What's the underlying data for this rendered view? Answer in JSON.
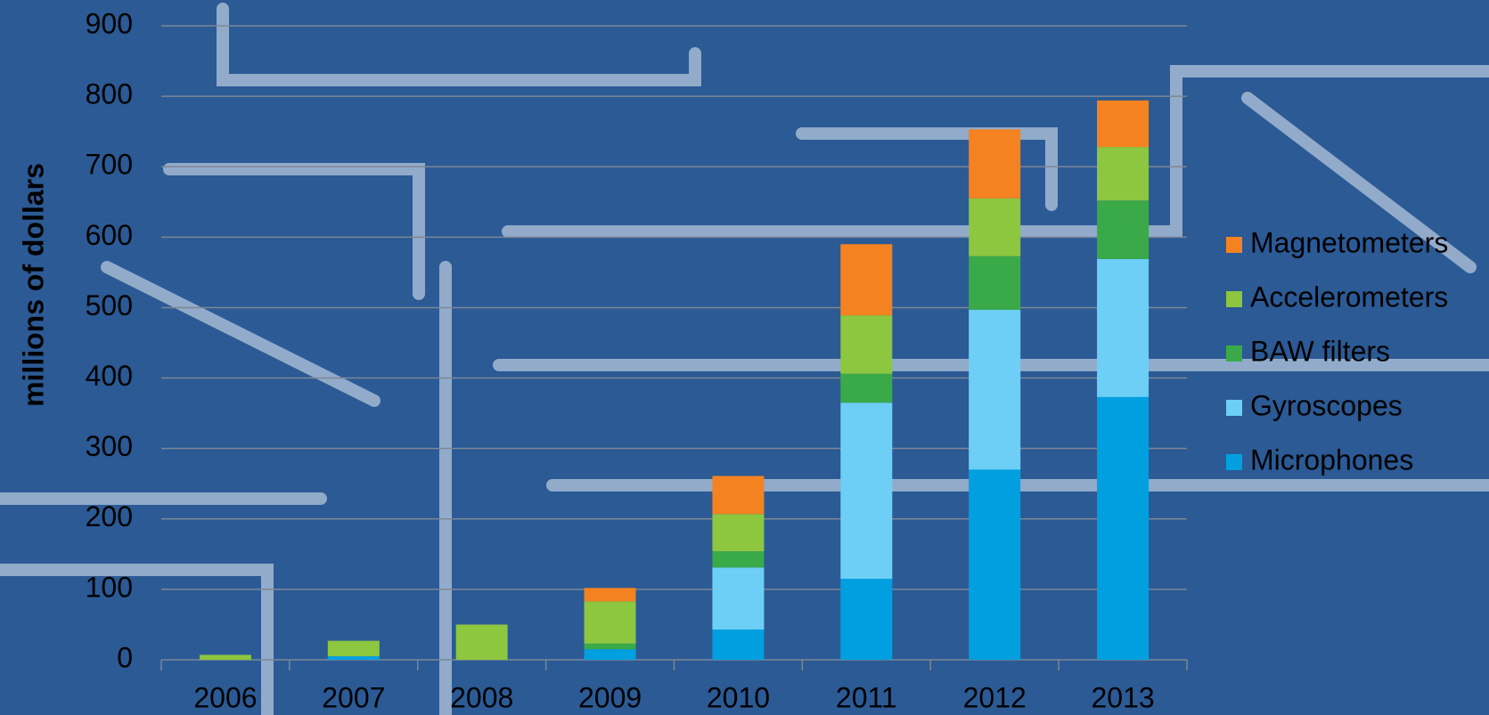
{
  "chart_data": {
    "type": "stacked_bar",
    "y_label": "millions of dollars",
    "categories": [
      "2006",
      "2007",
      "2008",
      "2009",
      "2010",
      "2011",
      "2012",
      "2013"
    ],
    "series": [
      {
        "name": "Microphones",
        "color": "#00a0e0",
        "values": [
          0,
          5,
          0,
          15,
          43,
          115,
          270,
          373
        ]
      },
      {
        "name": "Gyroscopes",
        "color": "#6dcff6",
        "values": [
          0,
          0,
          0,
          0,
          88,
          250,
          227,
          196
        ]
      },
      {
        "name": "BAW filters",
        "color": "#3aaa48",
        "values": [
          0,
          0,
          0,
          8,
          23,
          41,
          76,
          83
        ]
      },
      {
        "name": "Accelerometers",
        "color": "#8dc63f",
        "values": [
          7,
          22,
          50,
          60,
          53,
          83,
          82,
          76
        ]
      },
      {
        "name": "Magnetometers",
        "color": "#f58220",
        "values": [
          0,
          0,
          0,
          19,
          54,
          101,
          98,
          66
        ]
      }
    ],
    "ylim": [
      0,
      900
    ],
    "yticks": [
      0,
      100,
      200,
      300,
      400,
      500,
      600,
      700,
      800,
      900
    ],
    "grid": true,
    "legend": "right"
  }
}
